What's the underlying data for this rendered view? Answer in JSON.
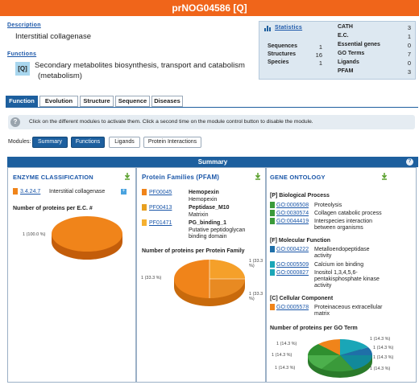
{
  "header": {
    "title": "prNOG04586 [Q]"
  },
  "description": {
    "label": "Description",
    "text": "Interstitial collagenase"
  },
  "functions": {
    "label": "Functions",
    "code": "[Q]",
    "text_line1": "Secondary metabolites biosynthesis, transport and catabolism",
    "text_line2": "(metabolism)"
  },
  "statistics": {
    "label": "Statistics",
    "left": [
      {
        "label": "Sequences",
        "value": "1"
      },
      {
        "label": "Structures",
        "value": "16"
      },
      {
        "label": "Species",
        "value": "1"
      }
    ],
    "right": [
      {
        "label": "CATH",
        "value": "3"
      },
      {
        "label": "E.C.",
        "value": "1"
      },
      {
        "label": "Essential genes",
        "value": "0"
      },
      {
        "label": "GO Terms",
        "value": "7"
      },
      {
        "label": "Ligands",
        "value": "0"
      },
      {
        "label": "PFAM",
        "value": "3"
      }
    ]
  },
  "tabs": [
    "Function",
    "Evolution",
    "Structure",
    "Sequence",
    "Diseases"
  ],
  "info": {
    "text": "Click on the different modules to activate them. Click a second time on the module control button to disable the module."
  },
  "modules": {
    "label": "Modules:",
    "buttons": [
      "Summary",
      "Functions",
      "Ligands",
      "Protein Interactions"
    ]
  },
  "summary": {
    "title": "Summary"
  },
  "enzyme": {
    "title": "Enzyme Classification",
    "ec": "3.4.24.7",
    "name": "Interstitial collagenase",
    "chart_title": "Number of proteins per E.C. #",
    "pie_label": "1 (100.0 %)"
  },
  "pfam": {
    "title": "Protein Families (PFAM)",
    "items": [
      {
        "id": "PF00045",
        "name": "Hemopexin",
        "desc": "Hemopexin"
      },
      {
        "id": "PF00413",
        "name": "Peptidase_M10",
        "desc": "Matrixin"
      },
      {
        "id": "PF01471",
        "name": "PG_binding_1",
        "desc1": "Putative peptidoglycan",
        "desc2": "binding domain"
      }
    ],
    "chart_title": "Number of proteins per Protein Family",
    "pie_labels": [
      "1 (33.3 %)",
      "1 (33.3 %)",
      "1 (33.3 %)"
    ]
  },
  "go": {
    "title": "Gene Ontology",
    "bp_label": "[P] Biological Process",
    "bp": [
      {
        "id": "GO:0006508",
        "name": "Proteolysis",
        "color": "#3a9a3a"
      },
      {
        "id": "GO:0030574",
        "name": "Collagen catabolic process",
        "color": "#3a9a3a"
      },
      {
        "id": "GO:0044419",
        "name1": "Interspecies interaction",
        "name2": "between organisms",
        "color": "#3a9a3a"
      }
    ],
    "mf_label": "[F] Molecular Function",
    "mf": [
      {
        "id": "GO:0004222",
        "name1": "Metalloendopeptidase",
        "name2": "activity",
        "color": "#1f6fa8"
      },
      {
        "id": "GO:0005509",
        "name": "Calcium ion binding",
        "color": "#1aa6b7"
      },
      {
        "id": "GO:0000827",
        "name1": "Inositol 1,3,4,5,6-",
        "name2": "pentakisphosphate kinase",
        "name3": "activity",
        "color": "#1aa6b7"
      }
    ],
    "cc_label": "[C] Cellular Component",
    "cc": [
      {
        "id": "GO:0005578",
        "name1": "Proteinaceous extracellular",
        "name2": "matrix",
        "color": "#f0841a"
      }
    ],
    "chart_title": "Number of proteins per GO Term",
    "pie_labels": [
      "1 (14.3 %)",
      "1 (14.3 %)",
      "1 (14.3 %)",
      "1 (14.3 %)",
      "1 (14.3 %)",
      "1 (14.3 %)",
      "1 (14.3 %)"
    ]
  },
  "colors": {
    "accent": "#1d5f9e",
    "header": "#f0651a",
    "link": "#1a56a8"
  }
}
